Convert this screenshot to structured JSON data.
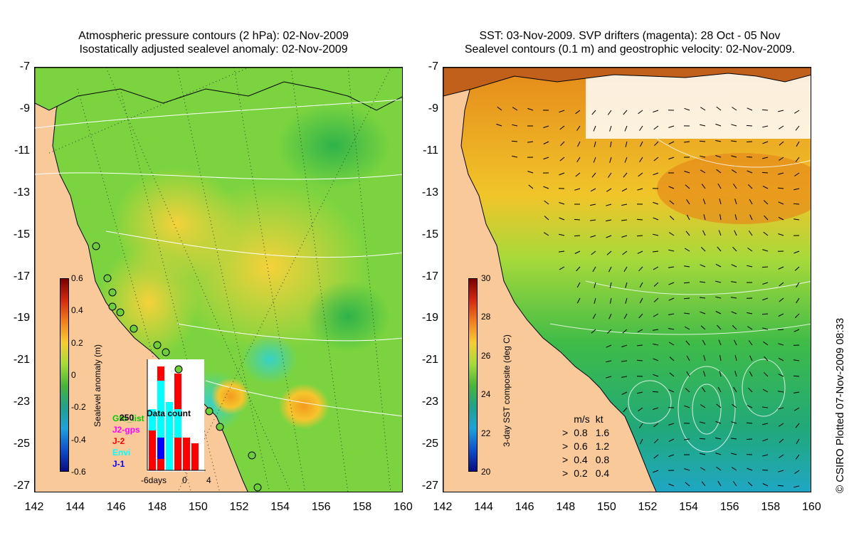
{
  "left_panel": {
    "title_line1": "Atmospheric pressure contours (2 hPa): 02-Nov-2009",
    "title_line2": "Isostatically adjusted sealevel anomaly: 02-Nov-2009",
    "colorbar_title": "Sealevel anomaly (m)",
    "colorbar_ticks": [
      "0.6",
      "0.4",
      "0.2",
      "0",
      "-0.2",
      "-0.4",
      "-0.6"
    ],
    "data_count_title": "Data count",
    "data_count_ymax": "250",
    "data_count_xlabels": [
      "-6days",
      "0",
      "4"
    ],
    "satellites": [
      {
        "name": "Gfo_list",
        "color": "#00cc00"
      },
      {
        "name": "J2-gps",
        "color": "#ff00ff"
      },
      {
        "name": "J-2",
        "color": "#ff0000"
      },
      {
        "name": "Envi",
        "color": "#00ffff"
      },
      {
        "name": "J-1",
        "color": "#0000ff"
      }
    ]
  },
  "right_panel": {
    "title_line1": "SST: 03-Nov-2009. SVP drifters (magenta): 28 Oct - 05 Nov",
    "title_line2": "Sealevel contours (0.1 m) and geostrophic velocity: 02-Nov-2009.",
    "colorbar_title": "3-day SST composite (deg C)",
    "colorbar_ticks": [
      "30",
      "28",
      "26",
      "24",
      "22",
      "20"
    ],
    "velocity_key": {
      "header_ms": "m/s",
      "header_kt": "kt",
      "rows": [
        {
          "ms": "0.8",
          "kt": "1.6"
        },
        {
          "ms": "0.6",
          "kt": "1.2"
        },
        {
          "ms": "0.4",
          "kt": "0.8"
        },
        {
          "ms": "0.2",
          "kt": "0.4"
        }
      ]
    },
    "copyright": "© CSIRO Plotted 07-Nov-2009 08:33"
  },
  "axes": {
    "lat_labels": [
      "-7",
      "-9",
      "-11",
      "-13",
      "-15",
      "-17",
      "-19",
      "-21",
      "-23",
      "-25",
      "-27"
    ],
    "lon_labels": [
      "142",
      "144",
      "146",
      "148",
      "150",
      "152",
      "154",
      "156",
      "158",
      "160"
    ]
  },
  "colors": {
    "land": "#f9c99a",
    "sla_mid": "#6ccf3a",
    "sst_mid": "#4fb84a"
  }
}
